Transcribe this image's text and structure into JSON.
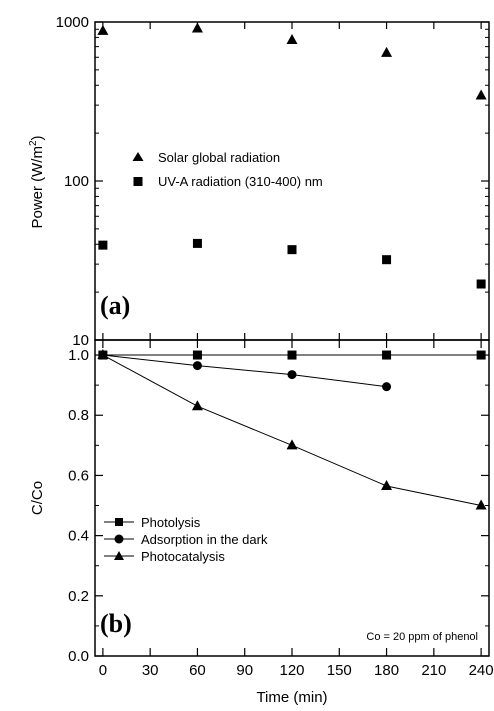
{
  "chart_data": [
    {
      "type": "scatter",
      "panel_label": "(a)",
      "ylabel_main": "Power (W/m",
      "ylabel_sup": "2",
      "ylabel_close": ")",
      "yscale": "log",
      "ylim": [
        10,
        1000
      ],
      "xlim": [
        0,
        240
      ],
      "yticks": [
        10,
        100,
        1000
      ],
      "ytick_labels": [
        "10",
        "100",
        "1000"
      ],
      "legend_position": "center-left",
      "series": [
        {
          "name": "Solar global radiation",
          "marker": "triangle",
          "x": [
            0,
            60,
            120,
            180,
            240
          ],
          "y": [
            880,
            910,
            770,
            640,
            345
          ]
        },
        {
          "name": "UV-A radiation (310-400) nm",
          "marker": "square",
          "x": [
            0,
            60,
            120,
            180,
            240
          ],
          "y": [
            39.5,
            40.5,
            37,
            32,
            22.5
          ]
        }
      ]
    },
    {
      "type": "line",
      "panel_label": "(b)",
      "ylabel": "C/Co",
      "xlabel": "Time (min)",
      "xlim": [
        -5,
        245
      ],
      "ylim": [
        0,
        1.05
      ],
      "xticks": [
        0,
        30,
        60,
        90,
        120,
        150,
        180,
        210,
        240
      ],
      "xtick_labels": [
        "0",
        "30",
        "60",
        "90",
        "120",
        "150",
        "180",
        "210",
        "240"
      ],
      "yticks": [
        0,
        0.2,
        0.4,
        0.6,
        0.8,
        1.0
      ],
      "ytick_labels": [
        "0.0",
        "0.2",
        "0.4",
        "0.6",
        "0.8",
        "1.0"
      ],
      "legend_position": "center-left",
      "annotation": "Co = 20 ppm of phenol",
      "series": [
        {
          "name": "Photolysis",
          "marker": "square",
          "x": [
            0,
            60,
            120,
            180,
            240
          ],
          "y": [
            1.0,
            1.0,
            1.0,
            1.0,
            1.0
          ]
        },
        {
          "name": "Adsorption in the dark",
          "marker": "circle",
          "x": [
            0,
            60,
            120,
            180
          ],
          "y": [
            1.0,
            0.965,
            0.935,
            0.895
          ]
        },
        {
          "name": "Photocatalysis",
          "marker": "triangle",
          "x": [
            0,
            60,
            120,
            180,
            240
          ],
          "y": [
            1.0,
            0.83,
            0.7,
            0.565,
            0.5
          ]
        }
      ]
    }
  ]
}
